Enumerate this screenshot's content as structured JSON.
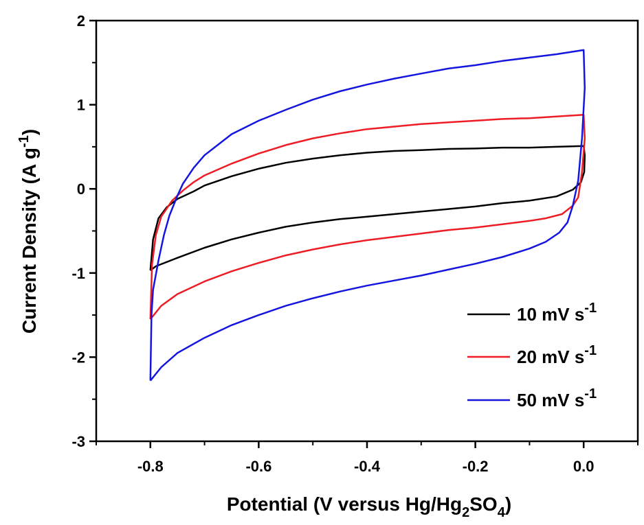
{
  "chart_data": {
    "type": "line",
    "title": "",
    "xlabel": {
      "main": "Potential (V versus Hg/Hg",
      "sub1": "2",
      "mid": "SO",
      "sub2": "4",
      "end": ")"
    },
    "ylabel": {
      "main": "Current Density (A g",
      "sup": "-1",
      "end": ")"
    },
    "xlim": [
      -0.9,
      0.1
    ],
    "ylim": [
      -3,
      2
    ],
    "xticks": [
      "-0.8",
      "-0.6",
      "-0.4",
      "-0.2",
      "0.0"
    ],
    "yticks": [
      "-3",
      "-2",
      "-1",
      "0",
      "1",
      "2"
    ],
    "grid": false,
    "legend_position": "bottom-right",
    "series": [
      {
        "name": "10 mV s",
        "name_sup": "-1",
        "color": "#000000",
        "points": [
          [
            -0.8,
            -0.97
          ],
          [
            -0.795,
            -0.6
          ],
          [
            -0.785,
            -0.35
          ],
          [
            -0.77,
            -0.22
          ],
          [
            -0.75,
            -0.12
          ],
          [
            -0.72,
            -0.03
          ],
          [
            -0.7,
            0.04
          ],
          [
            -0.65,
            0.15
          ],
          [
            -0.6,
            0.24
          ],
          [
            -0.55,
            0.31
          ],
          [
            -0.5,
            0.36
          ],
          [
            -0.45,
            0.4
          ],
          [
            -0.4,
            0.43
          ],
          [
            -0.35,
            0.45
          ],
          [
            -0.3,
            0.46
          ],
          [
            -0.25,
            0.475
          ],
          [
            -0.2,
            0.48
          ],
          [
            -0.15,
            0.49
          ],
          [
            -0.1,
            0.49
          ],
          [
            -0.05,
            0.5
          ],
          [
            0.0,
            0.51
          ],
          [
            0.002,
            0.4
          ],
          [
            0.001,
            0.2
          ],
          [
            -0.005,
            0.08
          ],
          [
            -0.02,
            -0.01
          ],
          [
            -0.05,
            -0.09
          ],
          [
            -0.1,
            -0.14
          ],
          [
            -0.15,
            -0.17
          ],
          [
            -0.2,
            -0.21
          ],
          [
            -0.25,
            -0.24
          ],
          [
            -0.3,
            -0.27
          ],
          [
            -0.35,
            -0.3
          ],
          [
            -0.4,
            -0.33
          ],
          [
            -0.45,
            -0.36
          ],
          [
            -0.5,
            -0.4
          ],
          [
            -0.55,
            -0.45
          ],
          [
            -0.6,
            -0.52
          ],
          [
            -0.65,
            -0.6
          ],
          [
            -0.7,
            -0.7
          ],
          [
            -0.75,
            -0.82
          ],
          [
            -0.79,
            -0.92
          ],
          [
            -0.8,
            -0.97
          ]
        ]
      },
      {
        "name": "20 mV s",
        "name_sup": "-1",
        "color": "#ee1c25",
        "points": [
          [
            -0.8,
            -1.55
          ],
          [
            -0.797,
            -0.9
          ],
          [
            -0.79,
            -0.55
          ],
          [
            -0.78,
            -0.33
          ],
          [
            -0.76,
            -0.14
          ],
          [
            -0.74,
            -0.02
          ],
          [
            -0.72,
            0.08
          ],
          [
            -0.7,
            0.16
          ],
          [
            -0.65,
            0.3
          ],
          [
            -0.6,
            0.42
          ],
          [
            -0.55,
            0.52
          ],
          [
            -0.5,
            0.6
          ],
          [
            -0.45,
            0.66
          ],
          [
            -0.4,
            0.71
          ],
          [
            -0.35,
            0.74
          ],
          [
            -0.3,
            0.77
          ],
          [
            -0.25,
            0.79
          ],
          [
            -0.2,
            0.81
          ],
          [
            -0.15,
            0.83
          ],
          [
            -0.1,
            0.84
          ],
          [
            -0.05,
            0.86
          ],
          [
            0.0,
            0.88
          ],
          [
            0.002,
            0.6
          ],
          [
            -0.003,
            0.2
          ],
          [
            -0.01,
            -0.1
          ],
          [
            -0.02,
            -0.2
          ],
          [
            -0.04,
            -0.3
          ],
          [
            -0.07,
            -0.35
          ],
          [
            -0.1,
            -0.38
          ],
          [
            -0.15,
            -0.42
          ],
          [
            -0.2,
            -0.46
          ],
          [
            -0.25,
            -0.49
          ],
          [
            -0.3,
            -0.53
          ],
          [
            -0.35,
            -0.57
          ],
          [
            -0.4,
            -0.61
          ],
          [
            -0.45,
            -0.66
          ],
          [
            -0.5,
            -0.72
          ],
          [
            -0.55,
            -0.79
          ],
          [
            -0.6,
            -0.88
          ],
          [
            -0.65,
            -0.98
          ],
          [
            -0.7,
            -1.1
          ],
          [
            -0.75,
            -1.25
          ],
          [
            -0.78,
            -1.39
          ],
          [
            -0.8,
            -1.55
          ]
        ]
      },
      {
        "name": "50 mV s",
        "name_sup": "-1",
        "color": "#1515e0",
        "points": [
          [
            -0.8,
            -2.28
          ],
          [
            -0.798,
            -1.5
          ],
          [
            -0.795,
            -1.2
          ],
          [
            -0.785,
            -0.85
          ],
          [
            -0.775,
            -0.55
          ],
          [
            -0.765,
            -0.32
          ],
          [
            -0.75,
            -0.08
          ],
          [
            -0.74,
            0.06
          ],
          [
            -0.72,
            0.25
          ],
          [
            -0.7,
            0.4
          ],
          [
            -0.68,
            0.5
          ],
          [
            -0.65,
            0.65
          ],
          [
            -0.6,
            0.81
          ],
          [
            -0.55,
            0.94
          ],
          [
            -0.5,
            1.06
          ],
          [
            -0.45,
            1.16
          ],
          [
            -0.4,
            1.24
          ],
          [
            -0.35,
            1.31
          ],
          [
            -0.3,
            1.37
          ],
          [
            -0.25,
            1.43
          ],
          [
            -0.2,
            1.47
          ],
          [
            -0.15,
            1.52
          ],
          [
            -0.1,
            1.56
          ],
          [
            -0.05,
            1.6
          ],
          [
            0.0,
            1.65
          ],
          [
            0.002,
            1.2
          ],
          [
            -0.003,
            0.6
          ],
          [
            -0.01,
            0.1
          ],
          [
            -0.02,
            -0.2
          ],
          [
            -0.03,
            -0.4
          ],
          [
            -0.045,
            -0.52
          ],
          [
            -0.07,
            -0.63
          ],
          [
            -0.1,
            -0.71
          ],
          [
            -0.15,
            -0.81
          ],
          [
            -0.2,
            -0.89
          ],
          [
            -0.25,
            -0.96
          ],
          [
            -0.3,
            -1.03
          ],
          [
            -0.35,
            -1.09
          ],
          [
            -0.4,
            -1.15
          ],
          [
            -0.45,
            -1.22
          ],
          [
            -0.5,
            -1.3
          ],
          [
            -0.55,
            -1.39
          ],
          [
            -0.6,
            -1.5
          ],
          [
            -0.65,
            -1.62
          ],
          [
            -0.7,
            -1.77
          ],
          [
            -0.75,
            -1.95
          ],
          [
            -0.78,
            -2.12
          ],
          [
            -0.8,
            -2.28
          ]
        ]
      }
    ]
  }
}
